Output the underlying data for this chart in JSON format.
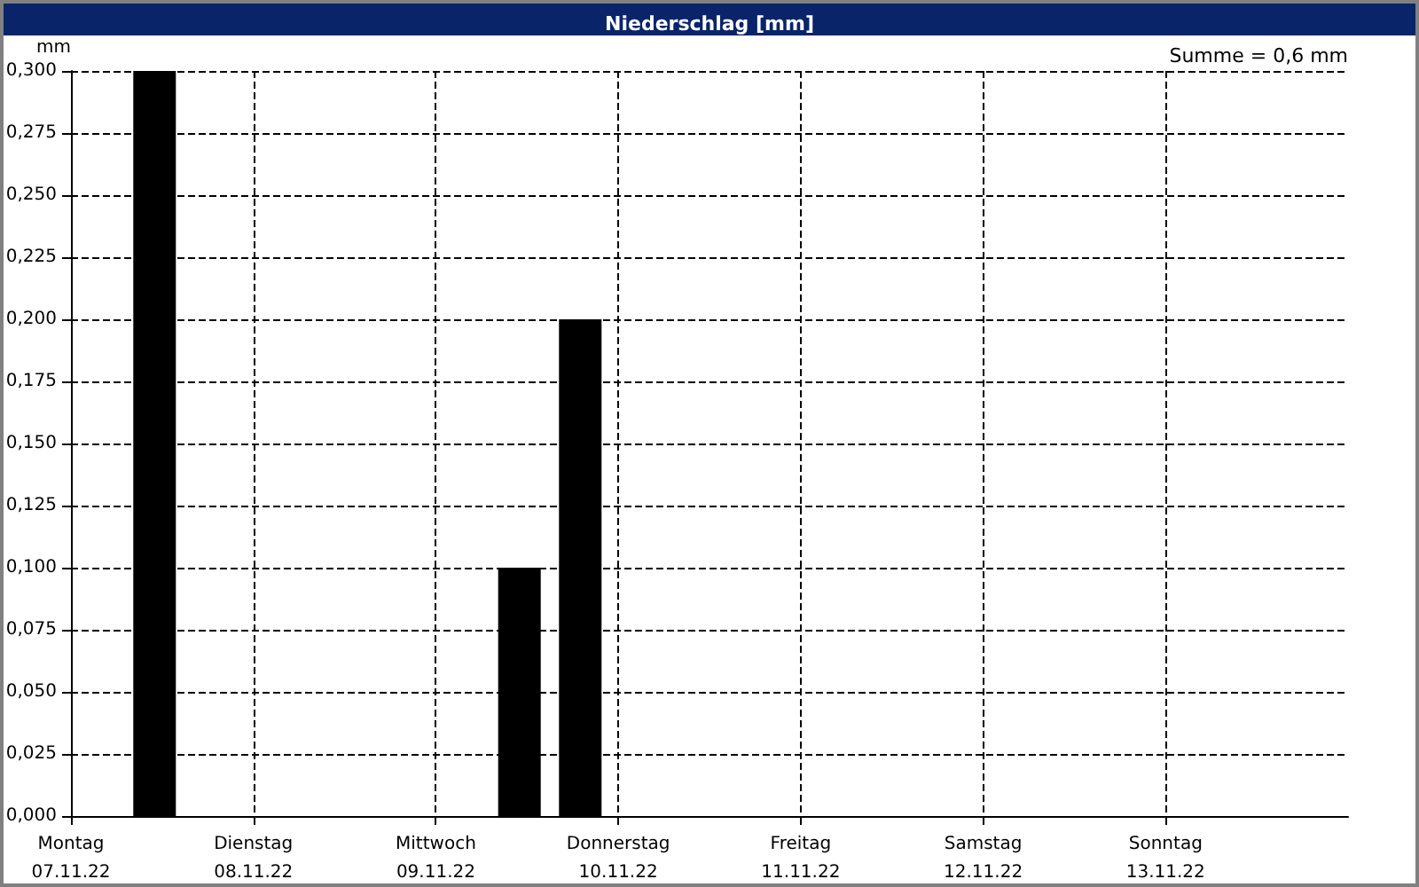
{
  "chart_data": {
    "type": "bar",
    "title": "Niederschlag [mm]",
    "ylabel": "mm",
    "annotations": [
      "Summe = 0,6 mm"
    ],
    "x": [
      "--11-07T11:00",
      "--11-09T11:00",
      "--11-09T19:00"
    ],
    "series": [
      {
        "color": "#000000",
        "values": [
          0.3,
          0.1,
          0.2
        ]
      }
    ],
    "xlim": [
      "--11-07",
      "--11-14"
    ],
    "xticks": [
      {
        "value": "--11-07",
        "label": "Montag\n07.11.22"
      },
      {
        "value": "--11-08",
        "label": "Dienstag\n08.11.22"
      },
      {
        "value": "--11-09",
        "label": "Mittwoch\n09.11.22"
      },
      {
        "value": "--11-10",
        "label": "Donnerstag\n10.11.22"
      },
      {
        "value": "--11-11",
        "label": "Freitag\n11.11.22"
      },
      {
        "value": "--11-12",
        "label": "Samstag\n12.11.22"
      },
      {
        "value": "--11-13",
        "label": "Sonntag\n13.11.22"
      }
    ],
    "ylim": [
      0,
      0.3
    ],
    "yticks": [
      {
        "value": 0,
        "label": "0,000"
      },
      {
        "value": 0.025,
        "label": "0,025"
      },
      {
        "value": 0.05,
        "label": "0,050"
      },
      {
        "value": 0.075,
        "label": "0,075"
      },
      {
        "value": 0.1,
        "label": "0,100"
      },
      {
        "value": 0.125,
        "label": "0,125"
      },
      {
        "value": 0.15,
        "label": "0,150"
      },
      {
        "value": 0.175,
        "label": "0,175"
      },
      {
        "value": 0.2,
        "label": "0,200"
      },
      {
        "value": 0.225,
        "label": "0,225"
      },
      {
        "value": 0.25,
        "label": "0,250"
      },
      {
        "value": 0.275,
        "label": "0,275"
      },
      {
        "value": 0.3,
        "label": "0,300"
      }
    ],
    "grid": true
  }
}
